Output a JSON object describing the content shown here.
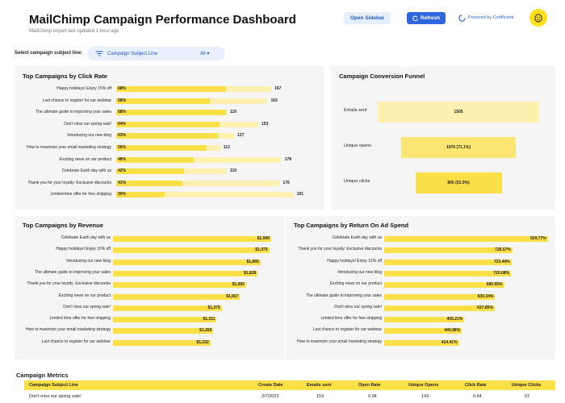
{
  "header": {
    "title": "MailChimp Campaign Performance Dashboard",
    "subtitle": "MailChimp import last updated 1 hour ago",
    "open_sidebar": "Open Sidebar",
    "refresh": "Refresh",
    "powered_by": "Powered by Coefficient"
  },
  "filter": {
    "label": "Select campaign subject line:",
    "field": "Campaign Subject Line",
    "value": "All"
  },
  "click_rate": {
    "title": "Top Campaigns by Click Rate",
    "rows": [
      {
        "label": "Happy holidays! Enjoy 15% off",
        "pct": "68%",
        "pct_num": 68,
        "value": "167",
        "value_num": 167
      },
      {
        "label": "Last chance to register for our webinar",
        "pct": "58%",
        "pct_num": 58,
        "value": "163",
        "value_num": 163
      },
      {
        "label": "The ultimate guide to improving your sales",
        "pct": "68%",
        "pct_num": 68,
        "value": "119",
        "value_num": 119
      },
      {
        "label": "Don't miss our spring sale!",
        "pct": "64%",
        "pct_num": 64,
        "value": "153",
        "value_num": 153
      },
      {
        "label": "Introducing our new blog",
        "pct": "63%",
        "pct_num": 63,
        "value": "127",
        "value_num": 127
      },
      {
        "label": "How to maximize your email marketing strategy",
        "pct": "56%",
        "pct_num": 56,
        "value": "112",
        "value_num": 112
      },
      {
        "label": "Exciting news on our product",
        "pct": "48%",
        "pct_num": 48,
        "value": "178",
        "value_num": 178
      },
      {
        "label": "Celebrate Earth day with us",
        "pct": "42%",
        "pct_num": 42,
        "value": "119",
        "value_num": 119
      },
      {
        "label": "Thank you for your loyalty: Exclusive discounts",
        "pct": "41%",
        "pct_num": 41,
        "value": "176",
        "value_num": 176
      },
      {
        "label": "Limited time offer for free shipping",
        "pct": "30%",
        "pct_num": 30,
        "value": "191",
        "value_num": 191
      }
    ]
  },
  "funnel": {
    "title": "Campaign Conversion Funnel",
    "stages": [
      {
        "label": "Emails sent",
        "value": "1505",
        "fraction": 1.0
      },
      {
        "label": "Unique opens",
        "value": "1070 (71.1%)",
        "fraction": 0.711
      },
      {
        "label": "Unique clicks",
        "value": "805 (53.5%)",
        "fraction": 0.535
      }
    ]
  },
  "revenue": {
    "title": "Top Campaigns by Revenue",
    "rows": [
      {
        "label": "Celebrate Earth day with us",
        "value": "$1,999",
        "num": 1999
      },
      {
        "label": "Happy holidays! Enjoy 15% off",
        "value": "$1,975",
        "num": 1975
      },
      {
        "label": "Introducing our new blog",
        "value": "$1,865",
        "num": 1865
      },
      {
        "label": "The ultimate guide to improving your sales",
        "value": "$1,828",
        "num": 1828
      },
      {
        "label": "Thank you for your loyalty: Exclusive discounts",
        "value": "$1,683",
        "num": 1683
      },
      {
        "label": "Exciting news on our product",
        "value": "$1,607",
        "num": 1607
      },
      {
        "label": "Don't miss our spring sale!",
        "value": "$1,375",
        "num": 1375
      },
      {
        "label": "Limited time offer for free shipping",
        "value": "$1,311",
        "num": 1311
      },
      {
        "label": "How to maximize your email marketing strategy",
        "value": "$1,269",
        "num": 1269
      },
      {
        "label": "Last chance to register for our webinar",
        "value": "$1,232",
        "num": 1232
      }
    ]
  },
  "roas": {
    "title": "Top Campaigns by Return On Ad Spend",
    "rows": [
      {
        "label": "Celebrate Earth day with us",
        "value": "929.77%",
        "num": 929.77
      },
      {
        "label": "Thank you for your loyalty: Exclusive discounts",
        "value": "728.57%",
        "num": 728.57
      },
      {
        "label": "Happy holidays! Enjoy 15% off",
        "value": "723.44%",
        "num": 723.44
      },
      {
        "label": "Introducing our new blog",
        "value": "720.08%",
        "num": 720.08
      },
      {
        "label": "Exciting news on our product",
        "value": "680.95%",
        "num": 680.95
      },
      {
        "label": "The ultimate guide to improving your sales",
        "value": "630.34%",
        "num": 630.34
      },
      {
        "label": "Don't miss our spring sale!",
        "value": "627.85%",
        "num": 627.85
      },
      {
        "label": "Limited time offer for free shipping",
        "value": "455.21%",
        "num": 455.21
      },
      {
        "label": "Last chance to register for our webinar",
        "value": "440.98%",
        "num": 440.98
      },
      {
        "label": "How to maximize your email marketing strategy",
        "value": "424.41%",
        "num": 424.41
      }
    ]
  },
  "metrics": {
    "title": "Campaign Metrics",
    "columns": [
      "Campaign Subject Line",
      "Create Date",
      "Emails sent",
      "Open Rate",
      "Unique Opens",
      "Click Rate",
      "Unique Clicks"
    ],
    "rows": [
      [
        "Don't miss our spring sale!",
        "2/7/2023",
        "153",
        "0.94",
        "143",
        "0.64",
        "97"
      ]
    ]
  },
  "colors": {
    "bar": "#fbdf46",
    "bar_light": "#fdf0b0",
    "accent": "#2f66e0",
    "panel": "#f5f5f5"
  }
}
